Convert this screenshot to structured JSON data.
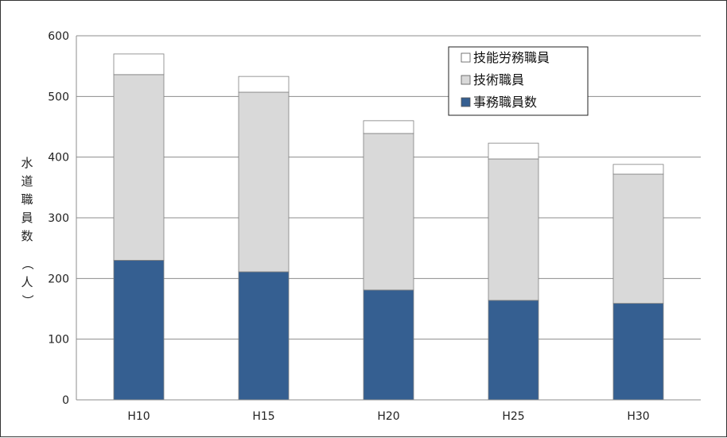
{
  "chart_data": {
    "type": "bar",
    "stacked": true,
    "ylabel": "水道職員数（人）",
    "ylim": [
      0,
      600
    ],
    "yticks": [
      0,
      100,
      200,
      300,
      400,
      500,
      600
    ],
    "grid": true,
    "legend_position": "top-right",
    "categories": [
      "H10",
      "H15",
      "H20",
      "H25",
      "H30"
    ],
    "series": [
      {
        "name": "事務職員数",
        "color": "#355f91",
        "values": [
          230,
          211,
          181,
          164,
          159
        ]
      },
      {
        "name": "技術職員",
        "color": "#d9d9d9",
        "values": [
          306,
          296,
          258,
          233,
          213
        ]
      },
      {
        "name": "技能労務職員",
        "color": "#ffffff",
        "values": [
          34,
          26,
          21,
          26,
          16
        ]
      }
    ],
    "legend_order": [
      "技能労務職員",
      "技術職員",
      "事務職員数"
    ]
  }
}
